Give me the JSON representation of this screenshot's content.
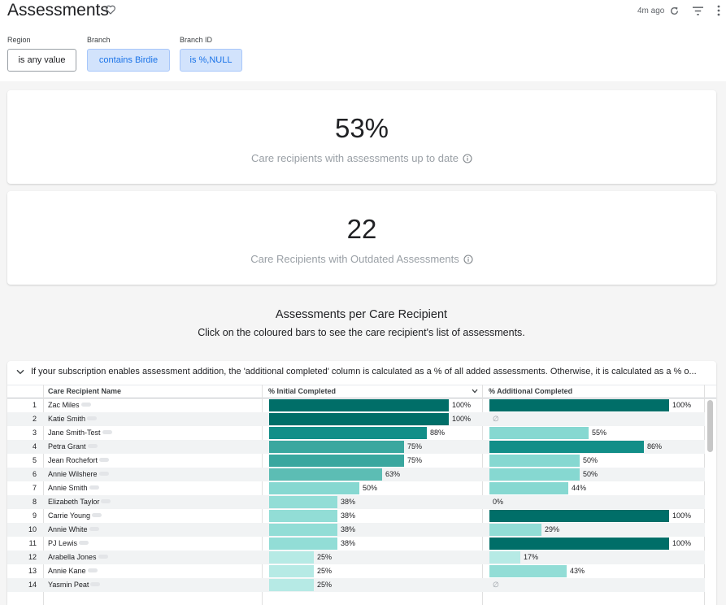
{
  "page": {
    "title": "Assessments",
    "updated": "4m ago",
    "icons": {
      "favorite": "heart-outline-icon",
      "refresh": "refresh-icon",
      "filter": "filter-icon",
      "more": "more-vert-icon"
    }
  },
  "filters": [
    {
      "label": "Region",
      "value": "is any value",
      "state": "plain"
    },
    {
      "label": "Branch",
      "value": "contains Birdie",
      "state": "active"
    },
    {
      "label": "Branch ID",
      "value": "is %,NULL",
      "state": "active"
    }
  ],
  "kpis": [
    {
      "value": "53%",
      "label": "Care recipients with assessments up to date"
    },
    {
      "value": "22",
      "label": "Care Recipients with Outdated Assessments"
    }
  ],
  "section": {
    "title": "Assessments per Care Recipient",
    "subtitle": "Click on the coloured bars to see the care recipient's list of assessments."
  },
  "table": {
    "note": "If your subscription enables assessment addition, the 'additional completed' column is calculated as a % of all added assessments. Otherwise, it is calculated as a % o...",
    "columns": [
      "Care Recipient Name",
      "% Initial Completed",
      "% Additional Completed"
    ],
    "colors": {
      "c100": "#006e68",
      "c86": "#128e88",
      "c75": "#3aa79f",
      "c63": "#5cbdb4",
      "c50": "#86d8d1",
      "c38": "#92ddd6",
      "c25": "#b6eae5"
    },
    "null_symbol": "∅",
    "rows": [
      {
        "n": "1",
        "name": "Zac Miles",
        "initial": 100,
        "additional": 100
      },
      {
        "n": "2",
        "name": "Katie Smith",
        "initial": 100,
        "additional": null
      },
      {
        "n": "3",
        "name": "Jane Smith-Test",
        "initial": 88,
        "additional": 55
      },
      {
        "n": "4",
        "name": "Petra Grant",
        "initial": 75,
        "additional": 86
      },
      {
        "n": "5",
        "name": "Jean Rochefort",
        "initial": 75,
        "additional": 50
      },
      {
        "n": "6",
        "name": "Annie Wilshere",
        "initial": 63,
        "additional": 50
      },
      {
        "n": "7",
        "name": "Annie Smith",
        "initial": 50,
        "additional": 44
      },
      {
        "n": "8",
        "name": "Elizabeth Taylor",
        "initial": 38,
        "additional": 0
      },
      {
        "n": "9",
        "name": "Carrie Young",
        "initial": 38,
        "additional": 100
      },
      {
        "n": "10",
        "name": "Annie White",
        "initial": 38,
        "additional": 29
      },
      {
        "n": "11",
        "name": "PJ Lewis",
        "initial": 38,
        "additional": 100
      },
      {
        "n": "12",
        "name": "Arabella Jones",
        "initial": 25,
        "additional": 17
      },
      {
        "n": "13",
        "name": "Annie Kane",
        "initial": 25,
        "additional": 43
      },
      {
        "n": "14",
        "name": "Yasmin Peat",
        "initial": 25,
        "additional": null
      }
    ]
  }
}
